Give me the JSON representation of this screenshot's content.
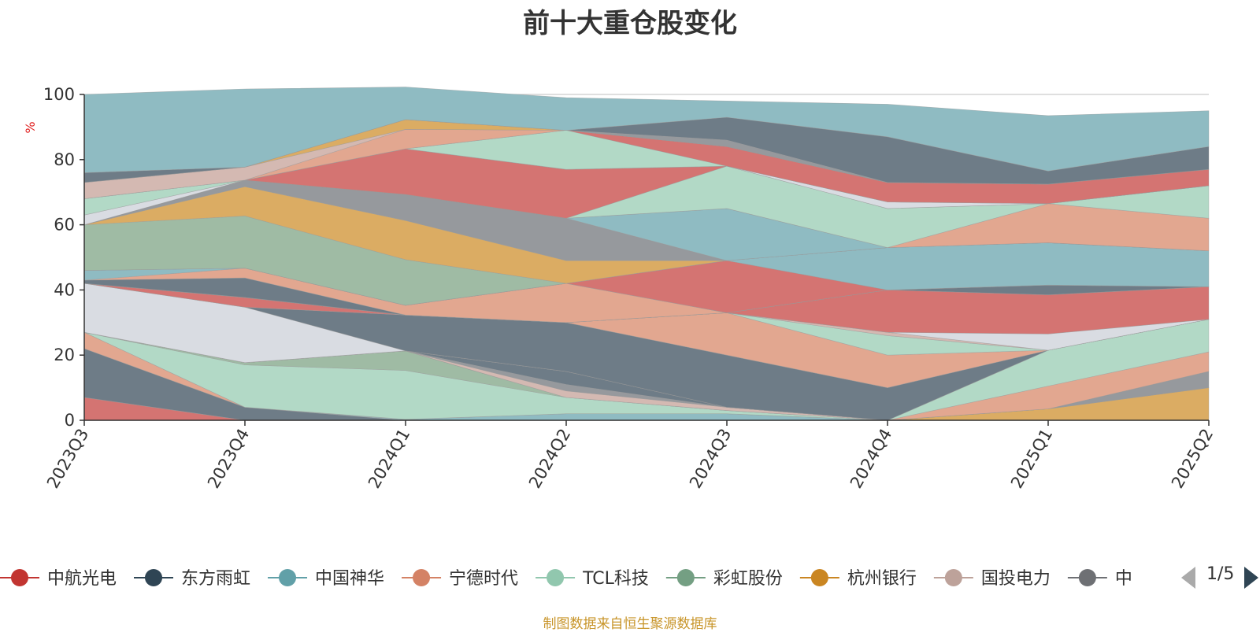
{
  "source_note": "制图数据来自恒生聚源数据库",
  "legend_page": "1/5",
  "chart_data": {
    "type": "area",
    "stacked": true,
    "title": "前十大重仓股变化",
    "ylabel": "%",
    "ylim": [
      0,
      100
    ],
    "yticks": [
      "0",
      "20",
      "40",
      "60",
      "80",
      "100"
    ],
    "categories": [
      "2023Q3",
      "2023Q4",
      "2024Q1",
      "2024Q2",
      "2024Q3",
      "2024Q4",
      "2025Q1",
      "2025Q2"
    ],
    "grid": true,
    "legend_position": "bottom",
    "series": [
      {
        "name": "中航光电",
        "color": "#d47472",
        "values": [
          7,
          0,
          0,
          0,
          0,
          0,
          0,
          0
        ]
      },
      {
        "name": "东方雨虹",
        "color": "#6e7c87",
        "values": [
          15,
          4,
          0,
          0,
          0,
          0,
          0,
          0
        ]
      },
      {
        "name": "中国神华",
        "color": "#8fbbc2",
        "values": [
          0,
          0,
          0.3,
          2,
          2,
          0,
          0,
          0
        ]
      },
      {
        "name": "宁德时代",
        "color": "#e2a790",
        "values": [
          5,
          0,
          0,
          0,
          0,
          0,
          0,
          0
        ]
      },
      {
        "name": "TCL科技",
        "color": "#b2d9c6",
        "values": [
          0,
          13,
          15,
          5,
          1,
          0,
          0,
          0
        ]
      },
      {
        "name": "彩虹股份",
        "color": "#9fbba4",
        "values": [
          0,
          0.7,
          6,
          0,
          0,
          0,
          0,
          0
        ]
      },
      {
        "name": "杭州银行",
        "color": "#dbac63",
        "values": [
          0,
          0,
          0,
          0,
          0,
          0,
          3.5,
          10
        ]
      },
      {
        "name": "国投电力",
        "color": "#d4b9b2",
        "values": [
          0,
          0,
          0,
          2,
          1,
          0,
          0,
          0
        ]
      },
      {
        "color": "#96999d",
        "values": [
          0,
          0,
          0,
          2,
          0,
          0,
          0,
          5
        ]
      },
      {
        "color": "#6e7c87",
        "values": [
          0,
          0,
          0,
          4,
          0,
          0,
          0,
          0
        ]
      },
      {
        "color": "#8fbbc2",
        "values": [
          0,
          0,
          0,
          0,
          0,
          0,
          0,
          0
        ]
      },
      {
        "color": "#e2a790",
        "values": [
          0,
          0,
          0,
          0,
          0,
          0,
          7,
          6
        ]
      },
      {
        "color": "#b2d9c6",
        "values": [
          0,
          0,
          0,
          0,
          0,
          0,
          11,
          10
        ]
      },
      {
        "color": "#d9dce2",
        "values": [
          15,
          17,
          0,
          0,
          0,
          0,
          0,
          0
        ]
      },
      {
        "color": "#6e7c87",
        "values": [
          0,
          0,
          11,
          15,
          16,
          10,
          0,
          0
        ]
      },
      {
        "color": "#d47472",
        "values": [
          0,
          3,
          0,
          0,
          0,
          0,
          0,
          0
        ]
      },
      {
        "color": "#e2a790",
        "values": [
          0,
          0,
          0,
          0,
          13,
          10,
          0,
          0
        ]
      },
      {
        "color": "#b2d9c6",
        "values": [
          0,
          0,
          0,
          0,
          0,
          6,
          0,
          0
        ]
      },
      {
        "color": "#d4b9b2",
        "values": [
          0,
          0,
          0,
          0,
          0,
          1,
          0,
          0
        ]
      },
      {
        "color": "#d9dce2",
        "values": [
          0,
          0,
          0,
          0,
          0,
          0,
          5,
          0
        ]
      },
      {
        "color": "#d47472",
        "values": [
          0,
          0,
          0,
          0,
          0,
          13,
          12,
          10
        ]
      },
      {
        "color": "#6e7c87",
        "values": [
          1,
          6,
          0,
          0,
          0,
          0,
          3,
          0
        ]
      },
      {
        "color": "#e2a790",
        "values": [
          0,
          3,
          3,
          12,
          0,
          0,
          0,
          0
        ]
      },
      {
        "color": "#8fbbc2",
        "values": [
          3,
          0,
          0,
          0,
          0,
          0,
          0,
          0
        ]
      },
      {
        "color": "#d47472",
        "values": [
          0,
          0,
          0,
          0,
          16,
          0,
          0,
          0
        ]
      },
      {
        "color": "#8fbbc2",
        "values": [
          0,
          0,
          0,
          0,
          0,
          13,
          13,
          11
        ]
      },
      {
        "color": "#9fbba4",
        "values": [
          14,
          16,
          14,
          0,
          0,
          0,
          0,
          0
        ]
      },
      {
        "color": "#dbac63",
        "values": [
          0,
          9,
          12,
          7,
          0,
          0,
          0,
          0
        ]
      },
      {
        "color": "#96999d",
        "values": [
          0,
          2,
          8,
          13,
          0,
          0,
          0,
          0
        ]
      },
      {
        "color": "#8fbbc2",
        "values": [
          0,
          0,
          0,
          0,
          16,
          0,
          0,
          0
        ]
      },
      {
        "color": "#e2a790",
        "values": [
          0,
          0,
          0,
          0,
          0,
          0,
          12,
          10
        ]
      },
      {
        "color": "#b2d9c6",
        "values": [
          0,
          0,
          0,
          0,
          13,
          12,
          0,
          10
        ]
      },
      {
        "color": "#d47472",
        "values": [
          0,
          0,
          14,
          15,
          0,
          0,
          0,
          0
        ]
      },
      {
        "color": "#d9dce2",
        "values": [
          3,
          0,
          0,
          0,
          0,
          2,
          0,
          0
        ]
      },
      {
        "color": "#b2d9c6",
        "values": [
          5,
          0,
          0,
          12,
          0,
          0,
          0,
          0
        ]
      },
      {
        "color": "#d47472",
        "values": [
          0,
          0,
          0,
          0,
          6,
          6,
          6,
          5
        ]
      },
      {
        "color": "#e2a790",
        "values": [
          0,
          0,
          6,
          0,
          0,
          0,
          0,
          0
        ]
      },
      {
        "color": "#d4b9b2",
        "values": [
          5,
          4,
          0,
          0,
          0,
          0,
          0,
          0
        ]
      },
      {
        "color": "#dbac63",
        "values": [
          0,
          0,
          3,
          0,
          0,
          0,
          0,
          0
        ]
      },
      {
        "color": "#96999d",
        "values": [
          0,
          0,
          0,
          0,
          2,
          0,
          0,
          0
        ]
      },
      {
        "color": "#6e7c87",
        "values": [
          3,
          0,
          0,
          0,
          7,
          14,
          4,
          7
        ]
      },
      {
        "color": "#8fbbc2",
        "values": [
          24,
          24,
          10,
          10,
          5,
          10,
          17,
          11
        ]
      }
    ],
    "legend_items": [
      {
        "name": "中航光电",
        "color": "#c23531"
      },
      {
        "name": "东方雨虹",
        "color": "#2f4554"
      },
      {
        "name": "中国神华",
        "color": "#61a0a8"
      },
      {
        "name": "宁德时代",
        "color": "#d48265"
      },
      {
        "name": "TCL科技",
        "color": "#91c7ae"
      },
      {
        "name": "彩虹股份",
        "color": "#749f83"
      },
      {
        "name": "杭州银行",
        "color": "#ca8622"
      },
      {
        "name": "国投电力",
        "color": "#bda29a"
      },
      {
        "name": "中",
        "color": "#6e7074"
      }
    ]
  }
}
